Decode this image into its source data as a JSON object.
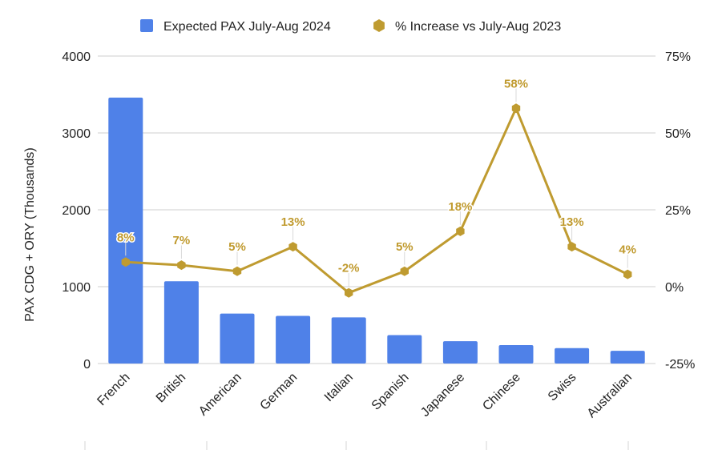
{
  "chart_data": {
    "type": "bar",
    "categories": [
      "French",
      "British",
      "American",
      "German",
      "Italian",
      "Spanish",
      "Japanese",
      "Chinese",
      "Swiss",
      "Australian"
    ],
    "series": [
      {
        "name": "Expected PAX July-Aug 2024",
        "type": "bar",
        "axis": "left",
        "color": "#4F81E8",
        "values": [
          3460,
          1070,
          650,
          620,
          600,
          370,
          290,
          240,
          200,
          165
        ]
      },
      {
        "name": "% Increase vs July-Aug 2023",
        "type": "line",
        "axis": "right",
        "color": "#BF9B30",
        "values": [
          8,
          7,
          5,
          13,
          -2,
          5,
          18,
          58,
          13,
          4
        ],
        "labels": [
          "8%",
          "7%",
          "5%",
          "13%",
          "-2%",
          "5%",
          "18%",
          "58%",
          "13%",
          "4%"
        ]
      }
    ],
    "ylabel": "PAX CDG + ORY (Thousands)",
    "ylim": [
      0,
      4000
    ],
    "yticks": [
      "0",
      "1000",
      "2000",
      "3000",
      "4000"
    ],
    "y2lim": [
      -25,
      75
    ],
    "y2ticks": [
      "-25%",
      "0%",
      "25%",
      "50%",
      "75%"
    ],
    "grid": true,
    "legend_position": "top-center"
  }
}
